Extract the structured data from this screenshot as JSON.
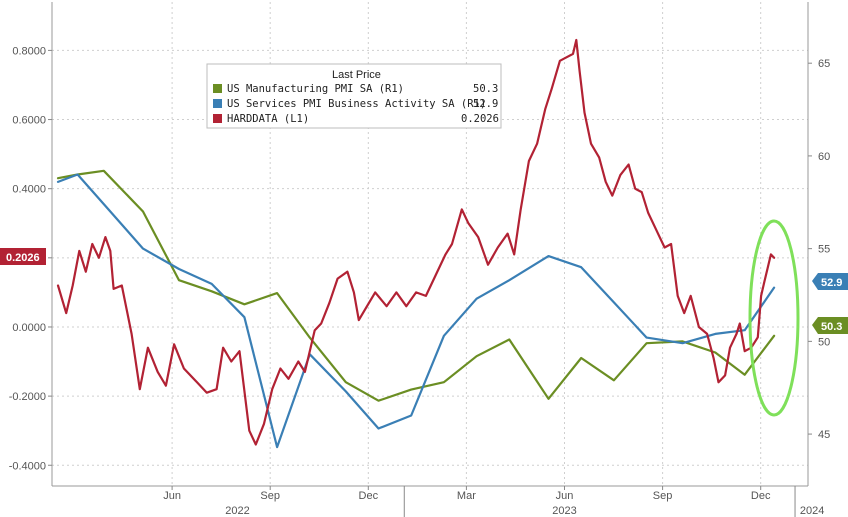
{
  "chart_data": {
    "type": "line",
    "x_axis": {
      "months": [
        "Jun",
        "Sep",
        "Dec",
        "Mar",
        "Jun",
        "Sep",
        "Dec"
      ],
      "years": [
        "2022",
        "2023",
        "2024"
      ]
    },
    "left_axis": {
      "ticks": [
        "0.8000",
        "0.6000",
        "0.4000",
        "0.2000",
        "0.0000",
        "-0.2000",
        "-0.4000"
      ],
      "ylim": [
        -0.46,
        0.94
      ]
    },
    "right_axis": {
      "ticks": [
        "65",
        "60",
        "55",
        "50",
        "45"
      ],
      "ylim": [
        42.2,
        68.3
      ]
    },
    "legend": {
      "header": "Last Price",
      "entries": [
        {
          "name": "US Manufacturing PMI SA  (R1)",
          "value": "50.3",
          "color": "#6b8e23"
        },
        {
          "name": "US Services PMI Business Activity SA  (R1)",
          "value": "52.9",
          "color": "#3a7fb5"
        },
        {
          "name": "HARDDATA  (L1)",
          "value": "0.2026",
          "color": "#b22234"
        }
      ]
    },
    "badges": {
      "harddata": "0.2026",
      "services": "52.9",
      "manufacturing": "50.3"
    },
    "series": [
      {
        "name": "US Manufacturing PMI SA",
        "axis": "right",
        "color": "#6b8e23",
        "points": [
          [
            0.0,
            58.8
          ],
          [
            0.6,
            59.0
          ],
          [
            1.4,
            59.2
          ],
          [
            2.6,
            57.0
          ],
          [
            3.7,
            53.3
          ],
          [
            4.7,
            52.7
          ],
          [
            5.7,
            52.0
          ],
          [
            6.7,
            52.6
          ],
          [
            7.7,
            50.2
          ],
          [
            8.8,
            47.8
          ],
          [
            9.8,
            46.8
          ],
          [
            10.8,
            47.4
          ],
          [
            11.8,
            47.8
          ],
          [
            12.8,
            49.2
          ],
          [
            13.8,
            50.1
          ],
          [
            15.0,
            46.9
          ],
          [
            16.0,
            49.1
          ],
          [
            17.0,
            47.9
          ],
          [
            18.0,
            49.9
          ],
          [
            19.1,
            50.0
          ],
          [
            20.1,
            49.4
          ],
          [
            21.0,
            48.2
          ],
          [
            21.9,
            50.3
          ]
        ]
      },
      {
        "name": "US Services PMI Business Activity SA",
        "axis": "right",
        "color": "#3a7fb5",
        "points": [
          [
            0.0,
            58.6
          ],
          [
            0.6,
            59.0
          ],
          [
            1.4,
            57.4
          ],
          [
            2.6,
            55.0
          ],
          [
            3.7,
            53.9
          ],
          [
            4.7,
            53.1
          ],
          [
            5.7,
            51.3
          ],
          [
            6.7,
            44.3
          ],
          [
            7.7,
            49.3
          ],
          [
            8.8,
            47.3
          ],
          [
            9.8,
            45.3
          ],
          [
            10.8,
            46.0
          ],
          [
            11.8,
            50.3
          ],
          [
            12.8,
            52.3
          ],
          [
            13.8,
            53.3
          ],
          [
            15.0,
            54.6
          ],
          [
            16.0,
            54.0
          ],
          [
            17.0,
            52.1
          ],
          [
            18.0,
            50.2
          ],
          [
            19.1,
            49.9
          ],
          [
            20.1,
            50.4
          ],
          [
            21.0,
            50.6
          ],
          [
            21.9,
            52.9
          ]
        ]
      },
      {
        "name": "HARDDATA",
        "axis": "left",
        "color": "#b22234",
        "points": [
          [
            0.0,
            0.12
          ],
          [
            0.25,
            0.04
          ],
          [
            0.45,
            0.12
          ],
          [
            0.65,
            0.22
          ],
          [
            0.85,
            0.16
          ],
          [
            1.05,
            0.24
          ],
          [
            1.25,
            0.2
          ],
          [
            1.45,
            0.26
          ],
          [
            1.6,
            0.22
          ],
          [
            1.7,
            0.11
          ],
          [
            1.95,
            0.12
          ],
          [
            2.25,
            -0.02
          ],
          [
            2.5,
            -0.18
          ],
          [
            2.75,
            -0.06
          ],
          [
            3.05,
            -0.13
          ],
          [
            3.3,
            -0.17
          ],
          [
            3.55,
            -0.05
          ],
          [
            3.85,
            -0.12
          ],
          [
            4.25,
            -0.16
          ],
          [
            4.55,
            -0.19
          ],
          [
            4.85,
            -0.18
          ],
          [
            5.05,
            -0.06
          ],
          [
            5.3,
            -0.1
          ],
          [
            5.55,
            -0.07
          ],
          [
            5.85,
            -0.3
          ],
          [
            6.05,
            -0.34
          ],
          [
            6.3,
            -0.28
          ],
          [
            6.55,
            -0.18
          ],
          [
            6.8,
            -0.12
          ],
          [
            7.05,
            -0.15
          ],
          [
            7.35,
            -0.1
          ],
          [
            7.55,
            -0.13
          ],
          [
            7.85,
            -0.01
          ],
          [
            8.05,
            0.01
          ],
          [
            8.3,
            0.07
          ],
          [
            8.55,
            0.14
          ],
          [
            8.85,
            0.16
          ],
          [
            9.05,
            0.1
          ],
          [
            9.2,
            0.02
          ],
          [
            9.45,
            0.06
          ],
          [
            9.7,
            0.1
          ],
          [
            10.05,
            0.06
          ],
          [
            10.35,
            0.1
          ],
          [
            10.65,
            0.06
          ],
          [
            10.95,
            0.1
          ],
          [
            11.25,
            0.09
          ],
          [
            11.55,
            0.15
          ],
          [
            11.85,
            0.21
          ],
          [
            12.05,
            0.24
          ],
          [
            12.35,
            0.34
          ],
          [
            12.55,
            0.3
          ],
          [
            12.85,
            0.26
          ],
          [
            13.15,
            0.18
          ],
          [
            13.45,
            0.23
          ],
          [
            13.75,
            0.27
          ],
          [
            13.95,
            0.21
          ],
          [
            14.15,
            0.34
          ],
          [
            14.4,
            0.48
          ],
          [
            14.65,
            0.53
          ],
          [
            14.9,
            0.63
          ],
          [
            15.1,
            0.69
          ],
          [
            15.35,
            0.77
          ],
          [
            15.55,
            0.78
          ],
          [
            15.75,
            0.79
          ],
          [
            15.85,
            0.83
          ],
          [
            15.95,
            0.74
          ],
          [
            16.1,
            0.62
          ],
          [
            16.3,
            0.53
          ],
          [
            16.55,
            0.49
          ],
          [
            16.75,
            0.42
          ],
          [
            16.95,
            0.38
          ],
          [
            17.2,
            0.44
          ],
          [
            17.45,
            0.47
          ],
          [
            17.65,
            0.4
          ],
          [
            17.85,
            0.39
          ],
          [
            18.05,
            0.33
          ],
          [
            18.3,
            0.28
          ],
          [
            18.55,
            0.23
          ],
          [
            18.75,
            0.24
          ],
          [
            18.95,
            0.09
          ],
          [
            19.15,
            0.04
          ],
          [
            19.35,
            0.09
          ],
          [
            19.6,
            0.0
          ],
          [
            19.85,
            -0.02
          ],
          [
            20.05,
            -0.09
          ],
          [
            20.2,
            -0.16
          ],
          [
            20.4,
            -0.14
          ],
          [
            20.55,
            -0.06
          ],
          [
            20.75,
            -0.02
          ],
          [
            20.85,
            0.01
          ],
          [
            21.0,
            -0.07
          ],
          [
            21.2,
            -0.06
          ],
          [
            21.4,
            -0.03
          ],
          [
            21.5,
            0.09
          ],
          [
            21.6,
            0.13
          ],
          [
            21.7,
            0.17
          ],
          [
            21.8,
            0.21
          ],
          [
            21.9,
            0.2
          ]
        ]
      }
    ],
    "annotation": {
      "type": "ellipse",
      "color": "#7fe05a",
      "around": "last values of all series"
    }
  }
}
